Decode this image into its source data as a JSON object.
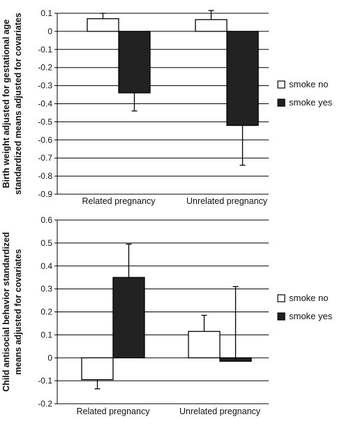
{
  "chart_data": [
    {
      "type": "bar",
      "categories": [
        "Related pregnancy",
        "Unrelated pregnancy"
      ],
      "series": [
        {
          "name": "smoke no",
          "values": [
            0.07,
            0.065
          ],
          "error_plus": [
            0.03,
            0.05
          ],
          "color": "#ffffff"
        },
        {
          "name": "smoke yes",
          "values": [
            -0.34,
            -0.52
          ],
          "error_minus": [
            0.1,
            0.22
          ],
          "color": "#222222"
        }
      ],
      "ylabel_lines": [
        "Birth weight adjusted for gestational age",
        "standardized means adjusted for covariates"
      ],
      "ylim": [
        -0.9,
        0.1
      ],
      "yticks": [
        "0.1",
        "0",
        "-0.1",
        "-0.2",
        "-0.3",
        "-0.4",
        "-0.5",
        "-0.6",
        "-0.7",
        "-0.8",
        "-0.9"
      ],
      "legend_position": "right",
      "grid": true
    },
    {
      "type": "bar",
      "categories": [
        "Related pregnancy",
        "Unrelated pregnancy"
      ],
      "series": [
        {
          "name": "smoke no",
          "values": [
            -0.095,
            0.115
          ],
          "error_minus": [
            0.04,
            0
          ],
          "error_plus": [
            0,
            0.07
          ],
          "color": "#ffffff"
        },
        {
          "name": "smoke yes",
          "values": [
            0.35,
            -0.015
          ],
          "error_plus": [
            0.145,
            0.325
          ],
          "color": "#222222"
        }
      ],
      "ylabel_lines": [
        "Child antisocial behavior standardized",
        "means adjusted for covariates"
      ],
      "ylim": [
        -0.2,
        0.6
      ],
      "yticks": [
        "0.6",
        "0.5",
        "0.4",
        "0.3",
        "0.2",
        "0.1",
        "0",
        "-0.1",
        "-0.2"
      ],
      "legend_position": "right",
      "grid": true
    }
  ]
}
